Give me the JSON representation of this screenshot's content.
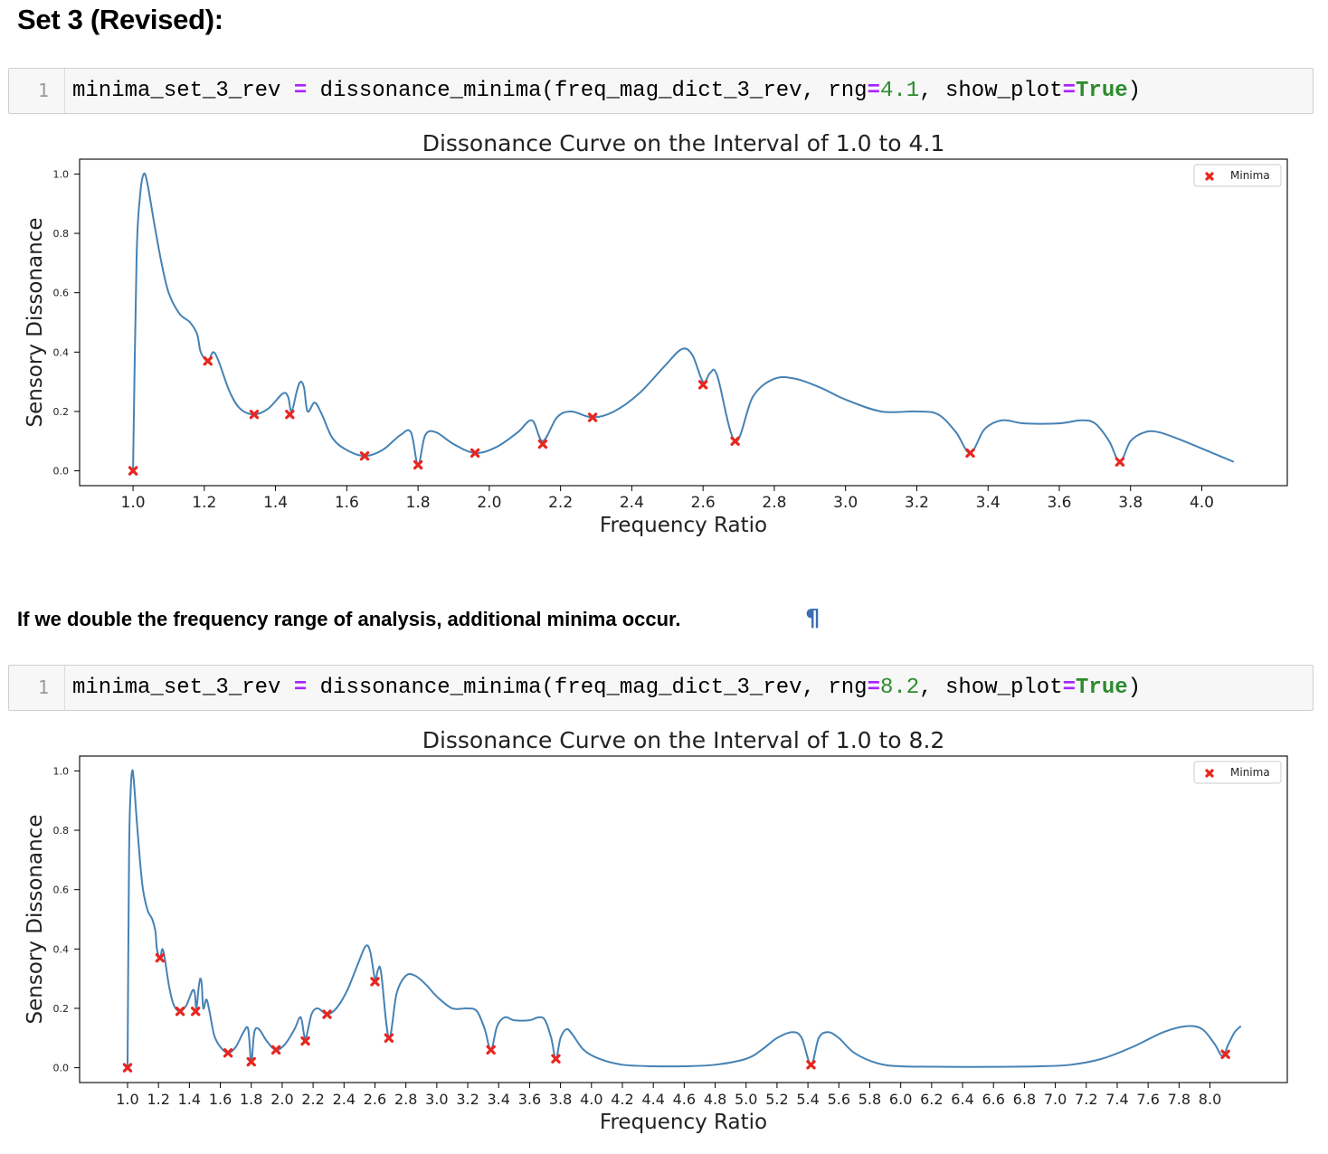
{
  "heading": "Set 3 (Revised):",
  "markdown_text": "If we double the frequency range of analysis, additional minima occur.",
  "pilcrow": "¶",
  "cells": [
    {
      "line_number": "1",
      "code_parts": [
        "minima_set_3_rev ",
        "=",
        " dissonance_minima(freq_mag_dict_3_rev, rng",
        "=",
        "4.1",
        ", show_plot",
        "=",
        "True",
        ")"
      ]
    },
    {
      "line_number": "1",
      "code_parts": [
        "minima_set_3_rev ",
        "=",
        " dissonance_minima(freq_mag_dict_3_rev, rng",
        "=",
        "8.2",
        ", show_plot",
        "=",
        "True",
        ")"
      ]
    }
  ],
  "colors": {
    "curve": "#4682b4",
    "minima": "#e8261f",
    "code_operator": "#aa22ff",
    "code_number": "#2e8b2e"
  },
  "chart_data": [
    {
      "type": "line",
      "title": "Dissonance Curve on the Interval of 1.0 to 4.1",
      "xlabel": "Frequency Ratio",
      "ylabel": "Sensory Dissonance",
      "xlim": [
        0.85,
        4.24
      ],
      "ylim": [
        -0.05,
        1.05
      ],
      "xticks": [
        "1.0",
        "1.2",
        "1.4",
        "1.6",
        "1.8",
        "2.0",
        "2.2",
        "2.4",
        "2.6",
        "2.8",
        "3.0",
        "3.2",
        "3.4",
        "3.6",
        "3.8",
        "4.0"
      ],
      "yticks": [
        "0.0",
        "0.2",
        "0.4",
        "0.6",
        "0.8",
        "1.0"
      ],
      "legend": {
        "label": "Minima",
        "placement": "top-right"
      },
      "grid": false,
      "series": [
        {
          "kind": "curve",
          "x": [
            1.0,
            1.01,
            1.02,
            1.03,
            1.04,
            1.06,
            1.08,
            1.1,
            1.13,
            1.16,
            1.18,
            1.19,
            1.21,
            1.225,
            1.24,
            1.27,
            1.3,
            1.34,
            1.38,
            1.42,
            1.435,
            1.445,
            1.46,
            1.47,
            1.48,
            1.49,
            1.51,
            1.53,
            1.56,
            1.6,
            1.65,
            1.7,
            1.75,
            1.78,
            1.8,
            1.82,
            1.85,
            1.9,
            1.96,
            2.02,
            2.08,
            2.12,
            2.15,
            2.19,
            2.23,
            2.29,
            2.35,
            2.42,
            2.49,
            2.54,
            2.57,
            2.6,
            2.62,
            2.64,
            2.69,
            2.74,
            2.8,
            2.86,
            2.93,
            3.0,
            3.1,
            3.2,
            3.26,
            3.31,
            3.35,
            3.39,
            3.44,
            3.5,
            3.6,
            3.66,
            3.7,
            3.74,
            3.77,
            3.8,
            3.84,
            3.88,
            3.95,
            4.03,
            4.09
          ],
          "y": [
            0.0,
            0.72,
            0.93,
            1.0,
            0.97,
            0.83,
            0.7,
            0.6,
            0.53,
            0.5,
            0.46,
            0.4,
            0.37,
            0.4,
            0.37,
            0.27,
            0.21,
            0.19,
            0.21,
            0.26,
            0.25,
            0.2,
            0.27,
            0.3,
            0.28,
            0.2,
            0.23,
            0.19,
            0.11,
            0.07,
            0.05,
            0.07,
            0.12,
            0.13,
            0.02,
            0.12,
            0.13,
            0.09,
            0.06,
            0.08,
            0.13,
            0.17,
            0.1,
            0.18,
            0.2,
            0.18,
            0.2,
            0.26,
            0.35,
            0.41,
            0.39,
            0.3,
            0.33,
            0.32,
            0.1,
            0.25,
            0.31,
            0.31,
            0.28,
            0.24,
            0.2,
            0.2,
            0.19,
            0.13,
            0.06,
            0.14,
            0.17,
            0.16,
            0.16,
            0.17,
            0.16,
            0.1,
            0.03,
            0.1,
            0.13,
            0.13,
            0.1,
            0.06,
            0.03
          ]
        },
        {
          "kind": "minima",
          "name": "Minima",
          "x": [
            1.0,
            1.21,
            1.34,
            1.44,
            1.65,
            1.8,
            1.96,
            2.15,
            2.29,
            2.6,
            2.69,
            3.35,
            3.77
          ],
          "y": [
            0.0,
            0.37,
            0.19,
            0.19,
            0.05,
            0.02,
            0.06,
            0.09,
            0.18,
            0.29,
            0.1,
            0.06,
            0.03
          ]
        }
      ]
    },
    {
      "type": "line",
      "title": "Dissonance Curve on the Interval of 1.0 to 8.2",
      "xlabel": "Frequency Ratio",
      "ylabel": "Sensory Dissonance",
      "xlim": [
        0.69,
        8.5
      ],
      "ylim": [
        -0.05,
        1.05
      ],
      "xticks": [
        "1.0",
        "1.2",
        "1.4",
        "1.6",
        "1.8",
        "2.0",
        "2.2",
        "2.4",
        "2.6",
        "2.8",
        "3.0",
        "3.2",
        "3.4",
        "3.6",
        "3.8",
        "4.0",
        "4.2",
        "4.4",
        "4.6",
        "4.8",
        "5.0",
        "5.2",
        "5.4",
        "5.6",
        "5.8",
        "6.0",
        "6.2",
        "6.4",
        "6.6",
        "6.8",
        "7.0",
        "7.2",
        "7.4",
        "7.6",
        "7.8",
        "8.0"
      ],
      "yticks": [
        "0.0",
        "0.2",
        "0.4",
        "0.6",
        "0.8",
        "1.0"
      ],
      "legend": {
        "label": "Minima",
        "placement": "top-right"
      },
      "grid": false,
      "series": [
        {
          "kind": "curve",
          "x": [
            1.0,
            1.01,
            1.02,
            1.03,
            1.04,
            1.06,
            1.08,
            1.1,
            1.13,
            1.16,
            1.18,
            1.19,
            1.21,
            1.225,
            1.24,
            1.27,
            1.3,
            1.34,
            1.38,
            1.42,
            1.435,
            1.445,
            1.46,
            1.47,
            1.48,
            1.49,
            1.51,
            1.53,
            1.56,
            1.6,
            1.65,
            1.7,
            1.75,
            1.78,
            1.8,
            1.82,
            1.85,
            1.9,
            1.96,
            2.02,
            2.08,
            2.12,
            2.15,
            2.19,
            2.23,
            2.29,
            2.35,
            2.42,
            2.49,
            2.54,
            2.57,
            2.6,
            2.62,
            2.64,
            2.69,
            2.74,
            2.8,
            2.86,
            2.93,
            3.0,
            3.1,
            3.2,
            3.26,
            3.31,
            3.35,
            3.39,
            3.44,
            3.5,
            3.6,
            3.66,
            3.7,
            3.74,
            3.77,
            3.8,
            3.84,
            3.88,
            3.95,
            4.05,
            4.2,
            4.4,
            4.6,
            4.8,
            5.0,
            5.1,
            5.2,
            5.3,
            5.36,
            5.42,
            5.47,
            5.53,
            5.6,
            5.7,
            5.85,
            6.0,
            6.3,
            6.6,
            6.9,
            7.1,
            7.3,
            7.5,
            7.7,
            7.85,
            7.95,
            8.03,
            8.08,
            8.12,
            8.16,
            8.2
          ],
          "y": [
            0.0,
            0.72,
            0.93,
            1.0,
            0.97,
            0.83,
            0.7,
            0.6,
            0.53,
            0.5,
            0.46,
            0.4,
            0.37,
            0.4,
            0.37,
            0.27,
            0.21,
            0.19,
            0.21,
            0.26,
            0.25,
            0.2,
            0.27,
            0.3,
            0.28,
            0.2,
            0.23,
            0.19,
            0.11,
            0.07,
            0.05,
            0.07,
            0.12,
            0.13,
            0.02,
            0.12,
            0.13,
            0.09,
            0.06,
            0.08,
            0.13,
            0.17,
            0.1,
            0.18,
            0.2,
            0.18,
            0.2,
            0.26,
            0.35,
            0.41,
            0.39,
            0.3,
            0.33,
            0.32,
            0.1,
            0.25,
            0.31,
            0.31,
            0.28,
            0.24,
            0.2,
            0.2,
            0.19,
            0.13,
            0.06,
            0.14,
            0.17,
            0.16,
            0.16,
            0.17,
            0.16,
            0.1,
            0.03,
            0.1,
            0.13,
            0.11,
            0.06,
            0.03,
            0.01,
            0.005,
            0.005,
            0.01,
            0.03,
            0.06,
            0.1,
            0.12,
            0.1,
            0.01,
            0.1,
            0.12,
            0.1,
            0.05,
            0.015,
            0.005,
            0.003,
            0.003,
            0.005,
            0.01,
            0.03,
            0.07,
            0.12,
            0.14,
            0.13,
            0.08,
            0.04,
            0.08,
            0.12,
            0.14
          ]
        },
        {
          "kind": "minima",
          "name": "Minima",
          "x": [
            1.0,
            1.21,
            1.34,
            1.44,
            1.65,
            1.8,
            1.96,
            2.15,
            2.29,
            2.6,
            2.69,
            3.35,
            3.77,
            5.42,
            8.1
          ],
          "y": [
            0.0,
            0.37,
            0.19,
            0.19,
            0.05,
            0.02,
            0.06,
            0.09,
            0.18,
            0.29,
            0.1,
            0.06,
            0.03,
            0.01,
            0.045
          ]
        }
      ]
    }
  ]
}
